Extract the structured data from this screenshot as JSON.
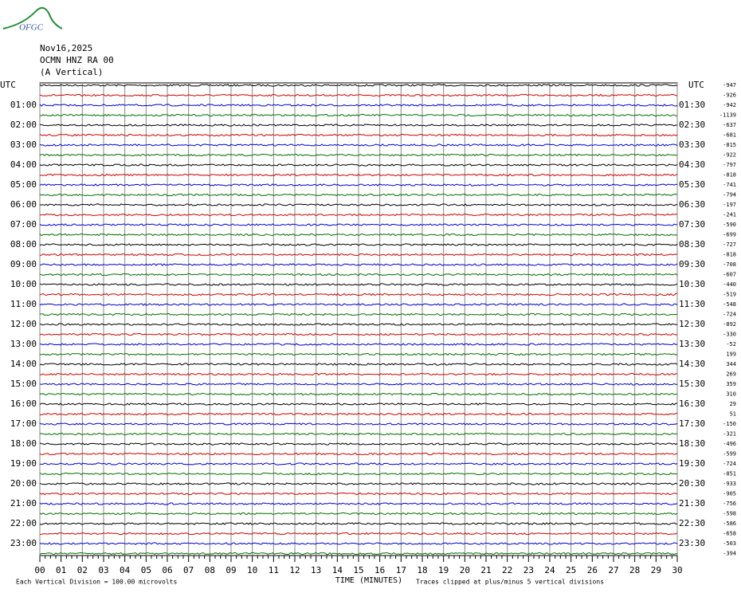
{
  "chart_data": {
    "type": "helicorder",
    "logo": "OFGC",
    "date": "Nov16,2025",
    "station": "OCMN HNZ RA 00",
    "component": "(A Vertical)",
    "left_axis_title": "UTC",
    "right_axis_title": "UTC",
    "x_label": "TIME (MINUTES)",
    "scale_note": "Each Vertical Division =  100.00 microvolts",
    "clip_note": "Traces clipped at plus/minus 5 vertical divisions",
    "colors": [
      "#000000",
      "#d00000",
      "#0000d0",
      "#007000"
    ],
    "xlim": [
      0,
      30
    ],
    "xticks": [
      {
        "value": 0,
        "label": "00"
      },
      {
        "value": 1,
        "label": "01"
      },
      {
        "value": 2,
        "label": "02"
      },
      {
        "value": 3,
        "label": "03"
      },
      {
        "value": 4,
        "label": "04"
      },
      {
        "value": 5,
        "label": "05"
      },
      {
        "value": 6,
        "label": "06"
      },
      {
        "value": 7,
        "label": "07"
      },
      {
        "value": 8,
        "label": "08"
      },
      {
        "value": 9,
        "label": "09"
      },
      10,
      11,
      12,
      13,
      14,
      15,
      16,
      17,
      18,
      19,
      20,
      21,
      22,
      23,
      24,
      25,
      26,
      27,
      28,
      29,
      30
    ],
    "left_labels": [
      "01:00",
      "02:00",
      "03:00",
      "04:00",
      "05:00",
      "06:00",
      "07:00",
      "08:00",
      "09:00",
      "10:00",
      "11:00",
      "12:00",
      "13:00",
      "14:00",
      "15:00",
      "16:00",
      "17:00",
      "18:00",
      "19:00",
      "20:00",
      "21:00",
      "22:00",
      "23:00"
    ],
    "right_labels": [
      "01:30",
      "02:30",
      "03:30",
      "04:30",
      "05:30",
      "06:30",
      "07:30",
      "08:30",
      "09:30",
      "10:30",
      "11:30",
      "12:30",
      "13:30",
      "14:30",
      "15:30",
      "16:30",
      "17:30",
      "18:30",
      "19:30",
      "20:30",
      "21:30",
      "22:30",
      "23:30"
    ],
    "trace_offsets": [
      -947,
      -926,
      -942,
      -1139,
      -637,
      -681,
      -815,
      -922,
      -797,
      -818,
      -741,
      -794,
      -197,
      -241,
      -590,
      -699,
      -727,
      -818,
      -708,
      -607,
      -440,
      -519,
      -548,
      -724,
      -892,
      -330,
      -52,
      199,
      344,
      269,
      359,
      310,
      29,
      51,
      -150,
      -321,
      -496,
      -599,
      -724,
      -851,
      -933,
      -905,
      -756,
      -598,
      -586,
      -658,
      -503,
      -394
    ]
  }
}
